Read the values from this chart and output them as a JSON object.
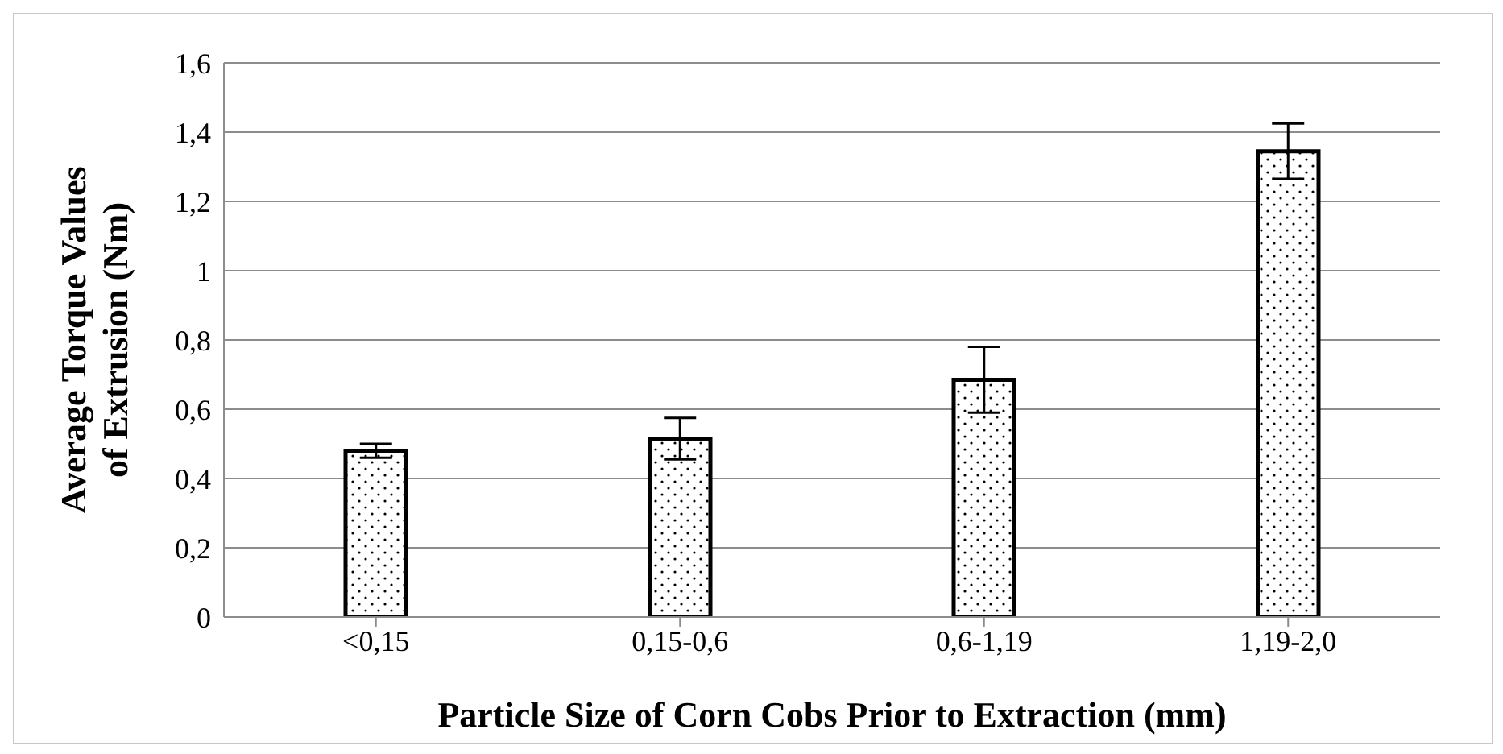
{
  "chart_data": {
    "type": "bar",
    "xlabel": "Particle Size of Corn Cobs Prior to Extraction  (mm)",
    "ylabel": "Average Torque Values of Extrusion (Nm)",
    "categories": [
      "<0,15",
      "0,15-0,6",
      "0,6-1,19",
      "1,19-2,0"
    ],
    "values": [
      0.48,
      0.515,
      0.685,
      1.345
    ],
    "errors": [
      0.02,
      0.06,
      0.095,
      0.08
    ],
    "color": "#000000",
    "ylim": [
      0,
      1.6
    ],
    "yticks": [
      0,
      {
        "value": 0.2,
        "label": "0,2"
      },
      {
        "value": 0.4,
        "label": "0,4"
      },
      {
        "value": 0.6,
        "label": "0,6"
      },
      {
        "value": 0.8,
        "label": "0,8"
      },
      1,
      {
        "value": 1.2,
        "label": "1,2"
      },
      {
        "value": 1.4,
        "label": "1,4"
      },
      {
        "value": 1.6,
        "label": "1,6"
      }
    ],
    "grid": "y",
    "legend": false
  }
}
